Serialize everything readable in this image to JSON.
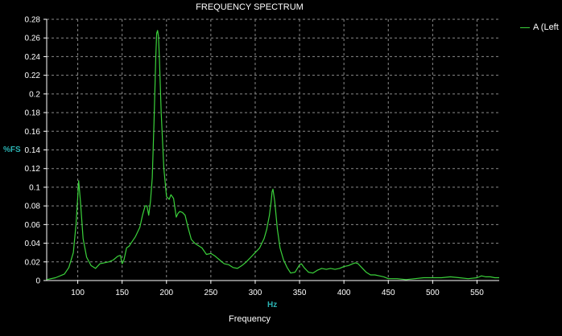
{
  "chart_data": {
    "type": "line",
    "title": "FREQUENCY SPECTRUM",
    "xlabel": "Frequency",
    "x_unit_label": "Hz",
    "ylabel": "%FS",
    "xlim": [
      65,
      575
    ],
    "ylim": [
      0,
      0.28
    ],
    "x_ticks": [
      100,
      150,
      200,
      250,
      300,
      350,
      400,
      450,
      500,
      550
    ],
    "y_ticks": [
      0,
      0.02,
      0.04,
      0.06,
      0.08,
      0.1,
      0.12,
      0.14,
      0.16,
      0.18,
      0.2,
      0.22,
      0.24,
      0.26,
      0.28
    ],
    "y_tick_labels": [
      "0",
      "0.02",
      "0.04",
      "0.06",
      "0.08",
      "0.1",
      "0.12",
      "0.14",
      "0.16",
      "0.18",
      "0.2",
      "0.22",
      "0.24",
      "0.26",
      "0.28"
    ],
    "grid": true,
    "legend_position": "top-right",
    "colors": {
      "background": "#000000",
      "grid": "#8a8a8a",
      "series": "#3bd23b",
      "axis_label": "#2bb3b3"
    },
    "series": [
      {
        "name": "A (Left",
        "x": [
          65,
          75,
          85,
          90,
          95,
          98,
          100,
          101,
          103,
          106,
          110,
          115,
          120,
          125,
          130,
          135,
          140,
          145,
          148,
          150,
          152,
          155,
          158,
          160,
          165,
          170,
          173,
          176,
          178,
          180,
          182,
          184,
          186,
          188,
          189,
          190,
          191,
          192,
          194,
          197,
          200,
          203,
          205,
          208,
          211,
          213,
          215,
          218,
          221,
          224,
          228,
          232,
          235,
          240,
          245,
          250,
          255,
          260,
          265,
          270,
          275,
          280,
          285,
          290,
          295,
          300,
          305,
          310,
          313,
          316,
          318,
          319,
          320,
          322,
          325,
          328,
          332,
          336,
          340,
          345,
          350,
          352,
          355,
          360,
          365,
          370,
          375,
          380,
          385,
          390,
          395,
          400,
          405,
          410,
          413,
          416,
          420,
          425,
          430,
          435,
          440,
          445,
          450,
          460,
          470,
          480,
          490,
          500,
          510,
          520,
          530,
          540,
          550,
          555,
          560,
          565,
          570,
          575
        ],
        "values": [
          0.001,
          0.003,
          0.007,
          0.014,
          0.03,
          0.06,
          0.09,
          0.107,
          0.085,
          0.045,
          0.025,
          0.016,
          0.013,
          0.018,
          0.019,
          0.02,
          0.022,
          0.026,
          0.027,
          0.018,
          0.022,
          0.035,
          0.037,
          0.04,
          0.047,
          0.057,
          0.07,
          0.08,
          0.08,
          0.07,
          0.085,
          0.11,
          0.17,
          0.24,
          0.265,
          0.268,
          0.262,
          0.24,
          0.18,
          0.12,
          0.09,
          0.087,
          0.092,
          0.088,
          0.068,
          0.072,
          0.074,
          0.073,
          0.07,
          0.058,
          0.044,
          0.04,
          0.038,
          0.035,
          0.028,
          0.029,
          0.026,
          0.022,
          0.018,
          0.017,
          0.014,
          0.013,
          0.016,
          0.02,
          0.025,
          0.03,
          0.035,
          0.045,
          0.055,
          0.07,
          0.085,
          0.095,
          0.098,
          0.085,
          0.055,
          0.035,
          0.022,
          0.014,
          0.008,
          0.009,
          0.017,
          0.018,
          0.014,
          0.009,
          0.008,
          0.011,
          0.013,
          0.012,
          0.013,
          0.012,
          0.013,
          0.015,
          0.016,
          0.018,
          0.019,
          0.018,
          0.014,
          0.009,
          0.006,
          0.006,
          0.005,
          0.004,
          0.002,
          0.002,
          0.001,
          0.002,
          0.003,
          0.003,
          0.003,
          0.004,
          0.003,
          0.002,
          0.003,
          0.005,
          0.004,
          0.004,
          0.003,
          0.003
        ]
      }
    ]
  }
}
